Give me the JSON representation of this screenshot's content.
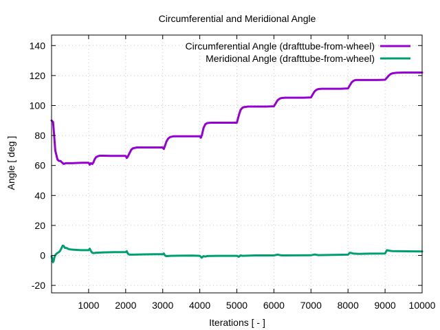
{
  "chart_data": {
    "type": "line",
    "title": "Circumferential and Meridional Angle",
    "xlabel": "Iterations [ - ]",
    "ylabel": "Angle [ deg ]",
    "xlim": [
      0,
      10000
    ],
    "ylim": [
      -25,
      147
    ],
    "xticks": [
      1000,
      2000,
      3000,
      4000,
      5000,
      6000,
      7000,
      8000,
      9000,
      10000
    ],
    "yticks": [
      -20,
      0,
      20,
      40,
      60,
      80,
      100,
      120,
      140
    ],
    "grid": true,
    "legend_position": "top-right",
    "series": [
      {
        "name": "Circumferential Angle (drafttube-from-wheel)",
        "color": "#9400d3",
        "x": [
          0,
          40,
          70,
          100,
          130,
          160,
          200,
          240,
          280,
          330,
          380,
          450,
          550,
          700,
          850,
          1000,
          1030,
          1060,
          1100,
          1130,
          1160,
          1200,
          1250,
          1300,
          1400,
          1600,
          1800,
          2000,
          2030,
          2060,
          2100,
          2150,
          2200,
          2300,
          2500,
          2800,
          3000,
          3030,
          3060,
          3100,
          3150,
          3200,
          3300,
          3500,
          3800,
          4000,
          4030,
          4060,
          4100,
          4150,
          4200,
          4300,
          4500,
          4800,
          5000,
          5060,
          5100,
          5150,
          5200,
          5300,
          5500,
          5800,
          6000,
          6050,
          6100,
          6150,
          6200,
          6300,
          6500,
          6800,
          7000,
          7050,
          7100,
          7150,
          7200,
          7300,
          7500,
          7800,
          8000,
          8050,
          8100,
          8150,
          8200,
          8300,
          8500,
          8800,
          9000,
          9050,
          9100,
          9150,
          9200,
          9300,
          9500,
          9800,
          10000
        ],
        "values": [
          90,
          89,
          80,
          70,
          67,
          64,
          63,
          63,
          62,
          61,
          61.5,
          61.5,
          61.5,
          61.7,
          61.8,
          61.8,
          60.5,
          61.5,
          61,
          62,
          64,
          65.5,
          66.2,
          66.5,
          66.5,
          66.4,
          66.4,
          66.4,
          65,
          66,
          68,
          70.5,
          71.5,
          72,
          72,
          72,
          72,
          71,
          73,
          76,
          78,
          79,
          79.5,
          79.5,
          79.5,
          79.5,
          78.5,
          80.5,
          85,
          87.5,
          88.3,
          88.5,
          88.5,
          88.5,
          88.5,
          94,
          97,
          98.5,
          99,
          99.3,
          99.3,
          99.3,
          99.5,
          101.5,
          103.5,
          104.5,
          105,
          105.2,
          105.2,
          105.2,
          105.4,
          107.5,
          109.5,
          110.5,
          111,
          111.2,
          111.2,
          111.2,
          111.4,
          113.5,
          115.5,
          116.5,
          117,
          117,
          117,
          117,
          117.2,
          118.5,
          120,
          121,
          121.5,
          121.8,
          122,
          122,
          122
        ]
      },
      {
        "name": "Meridional Angle (drafttube-from-wheel)",
        "color": "#009e73",
        "x": [
          0,
          20,
          40,
          60,
          80,
          110,
          150,
          190,
          230,
          270,
          300,
          330,
          360,
          400,
          450,
          500,
          600,
          800,
          1000,
          1030,
          1060,
          1100,
          1130,
          1200,
          1400,
          1700,
          2000,
          2030,
          2060,
          2100,
          2200,
          2500,
          2800,
          3000,
          3030,
          3060,
          3100,
          3200,
          3500,
          3800,
          4000,
          4050,
          4100,
          4150,
          4200,
          4500,
          4800,
          5000,
          5050,
          5100,
          5150,
          5500,
          6000,
          6100,
          6200,
          7000,
          7100,
          7200,
          8000,
          8050,
          8100,
          8150,
          8300,
          8600,
          9000,
          9050,
          9100,
          9150,
          9200,
          9400,
          9700,
          10000
        ],
        "values": [
          -0.5,
          -2.5,
          -4.5,
          -3.5,
          -1,
          0.5,
          1.5,
          2,
          3,
          5,
          6.5,
          6.2,
          5,
          5,
          4.3,
          4,
          3.8,
          3.5,
          3.5,
          4.5,
          3,
          1.8,
          1.5,
          1.8,
          2,
          2.2,
          2.2,
          2.8,
          1.2,
          0.5,
          0.5,
          0.7,
          0.8,
          0.8,
          1.3,
          0,
          -0.5,
          -0.3,
          -0.2,
          -0.1,
          -0.3,
          -1.5,
          -0.5,
          -0.8,
          -0.4,
          -0.3,
          -0.3,
          -0.3,
          -0.9,
          0,
          -0.3,
          0,
          0,
          0.5,
          0,
          0.1,
          0.6,
          0.2,
          0.5,
          1.8,
          1.5,
          1.2,
          1.0,
          1.2,
          1.3,
          3.5,
          3.2,
          3.0,
          2.9,
          2.8,
          2.7,
          2.6
        ]
      }
    ]
  }
}
